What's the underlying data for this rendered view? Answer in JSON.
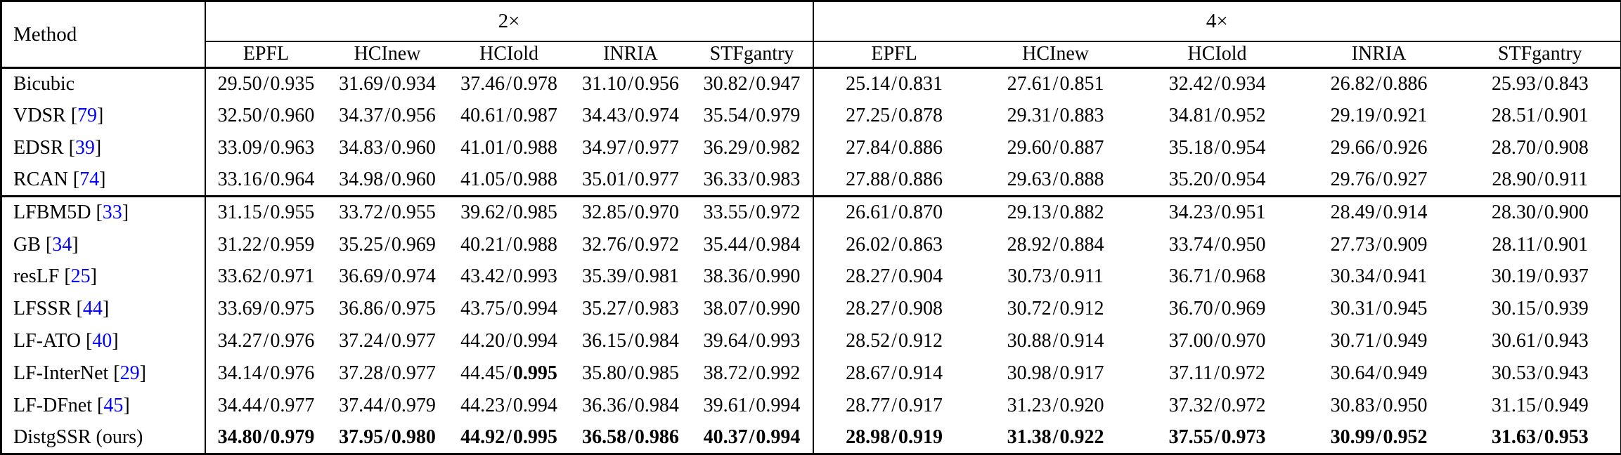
{
  "page": {
    "background": "#ffffff"
  },
  "table": {
    "title_column_label": "Method",
    "scale_groups": [
      {
        "label": "2×",
        "datasets": [
          "EPFL",
          "HCInew",
          "HCIold",
          "INRIA",
          "STFgantry"
        ]
      },
      {
        "label": "4×",
        "datasets": [
          "EPFL",
          "HCInew",
          "HCIold",
          "INRIA",
          "STFgantry"
        ]
      }
    ],
    "value_format": "PSNR/SSIM",
    "bold_flag_legend": {
      "0": "regular",
      "1": "entire value bold",
      "2": "SSIM part bold"
    },
    "colors": {
      "citation_link": "#0000ff",
      "text": "#000000",
      "border": "#000000",
      "background": "#ffffff"
    },
    "row_groups": [
      {
        "rows": [
          {
            "method": "Bicubic",
            "cite": null,
            "x2": [
              [
                "29.50/0.935",
                0
              ],
              [
                "31.69/0.934",
                0
              ],
              [
                "37.46/0.978",
                0
              ],
              [
                "31.10/0.956",
                0
              ],
              [
                "30.82/0.947",
                0
              ]
            ],
            "x4": [
              [
                "25.14/0.831",
                0
              ],
              [
                "27.61/0.851",
                0
              ],
              [
                "32.42/0.934",
                0
              ],
              [
                "26.82/0.886",
                0
              ],
              [
                "25.93/0.843",
                0
              ]
            ]
          },
          {
            "method": "VDSR",
            "cite": "79",
            "x2": [
              [
                "32.50/0.960",
                0
              ],
              [
                "34.37/0.956",
                0
              ],
              [
                "40.61/0.987",
                0
              ],
              [
                "34.43/0.974",
                0
              ],
              [
                "35.54/0.979",
                0
              ]
            ],
            "x4": [
              [
                "27.25/0.878",
                0
              ],
              [
                "29.31/0.883",
                0
              ],
              [
                "34.81/0.952",
                0
              ],
              [
                "29.19/0.921",
                0
              ],
              [
                "28.51/0.901",
                0
              ]
            ]
          },
          {
            "method": "EDSR",
            "cite": "39",
            "x2": [
              [
                "33.09/0.963",
                0
              ],
              [
                "34.83/0.960",
                0
              ],
              [
                "41.01/0.988",
                0
              ],
              [
                "34.97/0.977",
                0
              ],
              [
                "36.29/0.982",
                0
              ]
            ],
            "x4": [
              [
                "27.84/0.886",
                0
              ],
              [
                "29.60/0.887",
                0
              ],
              [
                "35.18/0.954",
                0
              ],
              [
                "29.66/0.926",
                0
              ],
              [
                "28.70/0.908",
                0
              ]
            ]
          },
          {
            "method": "RCAN",
            "cite": "74",
            "x2": [
              [
                "33.16/0.964",
                0
              ],
              [
                "34.98/0.960",
                0
              ],
              [
                "41.05/0.988",
                0
              ],
              [
                "35.01/0.977",
                0
              ],
              [
                "36.33/0.983",
                0
              ]
            ],
            "x4": [
              [
                "27.88/0.886",
                0
              ],
              [
                "29.63/0.888",
                0
              ],
              [
                "35.20/0.954",
                0
              ],
              [
                "29.76/0.927",
                0
              ],
              [
                "28.90/0.911",
                0
              ]
            ]
          }
        ]
      },
      {
        "rows": [
          {
            "method": "LFBM5D",
            "cite": "33",
            "x2": [
              [
                "31.15/0.955",
                0
              ],
              [
                "33.72/0.955",
                0
              ],
              [
                "39.62/0.985",
                0
              ],
              [
                "32.85/0.970",
                0
              ],
              [
                "33.55/0.972",
                0
              ]
            ],
            "x4": [
              [
                "26.61/0.870",
                0
              ],
              [
                "29.13/0.882",
                0
              ],
              [
                "34.23/0.951",
                0
              ],
              [
                "28.49/0.914",
                0
              ],
              [
                "28.30/0.900",
                0
              ]
            ]
          },
          {
            "method": "GB",
            "cite": "34",
            "x2": [
              [
                "31.22/0.959",
                0
              ],
              [
                "35.25/0.969",
                0
              ],
              [
                "40.21/0.988",
                0
              ],
              [
                "32.76/0.972",
                0
              ],
              [
                "35.44/0.984",
                0
              ]
            ],
            "x4": [
              [
                "26.02/0.863",
                0
              ],
              [
                "28.92/0.884",
                0
              ],
              [
                "33.74/0.950",
                0
              ],
              [
                "27.73/0.909",
                0
              ],
              [
                "28.11/0.901",
                0
              ]
            ]
          },
          {
            "method": "resLF",
            "cite": "25",
            "x2": [
              [
                "33.62/0.971",
                0
              ],
              [
                "36.69/0.974",
                0
              ],
              [
                "43.42/0.993",
                0
              ],
              [
                "35.39/0.981",
                0
              ],
              [
                "38.36/0.990",
                0
              ]
            ],
            "x4": [
              [
                "28.27/0.904",
                0
              ],
              [
                "30.73/0.911",
                0
              ],
              [
                "36.71/0.968",
                0
              ],
              [
                "30.34/0.941",
                0
              ],
              [
                "30.19/0.937",
                0
              ]
            ]
          },
          {
            "method": "LFSSR",
            "cite": "44",
            "x2": [
              [
                "33.69/0.975",
                0
              ],
              [
                "36.86/0.975",
                0
              ],
              [
                "43.75/0.994",
                0
              ],
              [
                "35.27/0.983",
                0
              ],
              [
                "38.07/0.990",
                0
              ]
            ],
            "x4": [
              [
                "28.27/0.908",
                0
              ],
              [
                "30.72/0.912",
                0
              ],
              [
                "36.70/0.969",
                0
              ],
              [
                "30.31/0.945",
                0
              ],
              [
                "30.15/0.939",
                0
              ]
            ]
          },
          {
            "method": "LF-ATO",
            "cite": "40",
            "x2": [
              [
                "34.27/0.976",
                0
              ],
              [
                "37.24/0.977",
                0
              ],
              [
                "44.20/0.994",
                0
              ],
              [
                "36.15/0.984",
                0
              ],
              [
                "39.64/0.993",
                0
              ]
            ],
            "x4": [
              [
                "28.52/0.912",
                0
              ],
              [
                "30.88/0.914",
                0
              ],
              [
                "37.00/0.970",
                0
              ],
              [
                "30.71/0.949",
                0
              ],
              [
                "30.61/0.943",
                0
              ]
            ]
          },
          {
            "method": "LF-InterNet",
            "cite": "29",
            "x2": [
              [
                "34.14/0.976",
                0
              ],
              [
                "37.28/0.977",
                0
              ],
              [
                "44.45/0.995",
                2
              ],
              [
                "35.80/0.985",
                0
              ],
              [
                "38.72/0.992",
                0
              ]
            ],
            "x4": [
              [
                "28.67/0.914",
                0
              ],
              [
                "30.98/0.917",
                0
              ],
              [
                "37.11/0.972",
                0
              ],
              [
                "30.64/0.949",
                0
              ],
              [
                "30.53/0.943",
                0
              ]
            ]
          },
          {
            "method": "LF-DFnet",
            "cite": "45",
            "x2": [
              [
                "34.44/0.977",
                0
              ],
              [
                "37.44/0.979",
                0
              ],
              [
                "44.23/0.994",
                0
              ],
              [
                "36.36/0.984",
                0
              ],
              [
                "39.61/0.994",
                0
              ]
            ],
            "x4": [
              [
                "28.77/0.917",
                0
              ],
              [
                "31.23/0.920",
                0
              ],
              [
                "37.32/0.972",
                0
              ],
              [
                "30.83/0.950",
                0
              ],
              [
                "31.15/0.949",
                0
              ]
            ]
          },
          {
            "method": "DistgSSR (ours)",
            "cite": null,
            "x2": [
              [
                "34.80/0.979",
                1
              ],
              [
                "37.95/0.980",
                1
              ],
              [
                "44.92/0.995",
                1
              ],
              [
                "36.58/0.986",
                1
              ],
              [
                "40.37/0.994",
                1
              ]
            ],
            "x4": [
              [
                "28.98/0.919",
                1
              ],
              [
                "31.38/0.922",
                1
              ],
              [
                "37.55/0.973",
                1
              ],
              [
                "30.99/0.952",
                1
              ],
              [
                "31.63/0.953",
                1
              ]
            ]
          }
        ]
      }
    ]
  }
}
